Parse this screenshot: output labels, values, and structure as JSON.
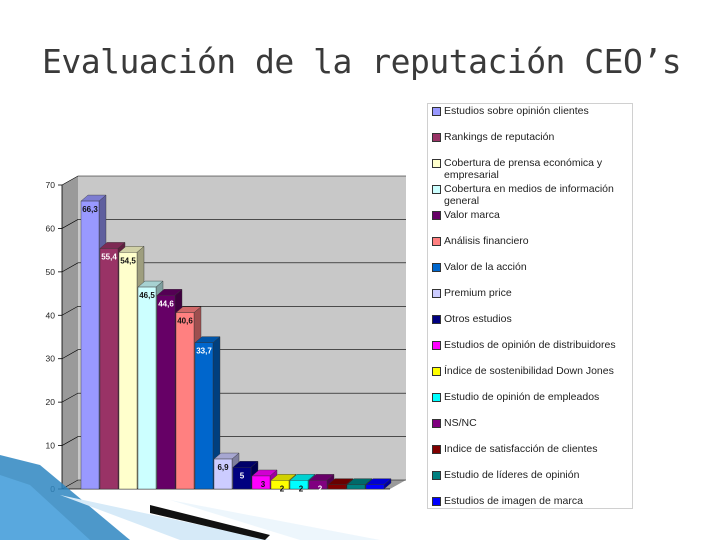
{
  "slide": {
    "title": "Evaluación de la reputación CEO’s"
  },
  "chart_data": {
    "type": "bar",
    "title": "",
    "xlabel": "",
    "ylabel": "",
    "ylim": [
      0,
      70
    ],
    "yticks": [
      0,
      10,
      20,
      30,
      40,
      50,
      60,
      70
    ],
    "grid": true,
    "legend": "right",
    "categories": [
      "Estudios sobre opinión clientes",
      "Rankings de reputación",
      "Cobertura de prensa económica y empresarial",
      "Cobertura en medios de información general",
      "Valor marca",
      "Análisis financiero",
      "Valor de la acción",
      "Premium price",
      "Otros estudios",
      "Estudios de opinión de distribuidores",
      "Índice de sostenibilidad Down Jones",
      "Estudio de opinión de empleados",
      "NS/NC",
      "Indice de satisfacción de clientes",
      "Estudio de líderes de opinión",
      "Estudios de imagen de marca"
    ],
    "values": [
      66.3,
      55.4,
      54.5,
      46.5,
      44.6,
      40.6,
      33.7,
      6.9,
      5,
      3,
      2,
      2,
      2,
      1,
      1,
      1
    ],
    "value_labels": [
      "66,3",
      "55,4",
      "54,5",
      "46,5",
      "44,6",
      "40,6",
      "33,7",
      "6,9",
      "5",
      "3",
      "2",
      "2",
      "2",
      "1",
      "1",
      "1"
    ],
    "colors": [
      "#9999ff",
      "#993366",
      "#ffffcc",
      "#ccffff",
      "#660066",
      "#ff8080",
      "#0066cc",
      "#ccccff",
      "#000080",
      "#ff00ff",
      "#ffff00",
      "#00ffff",
      "#800080",
      "#800000",
      "#008080",
      "#0000ff"
    ]
  }
}
